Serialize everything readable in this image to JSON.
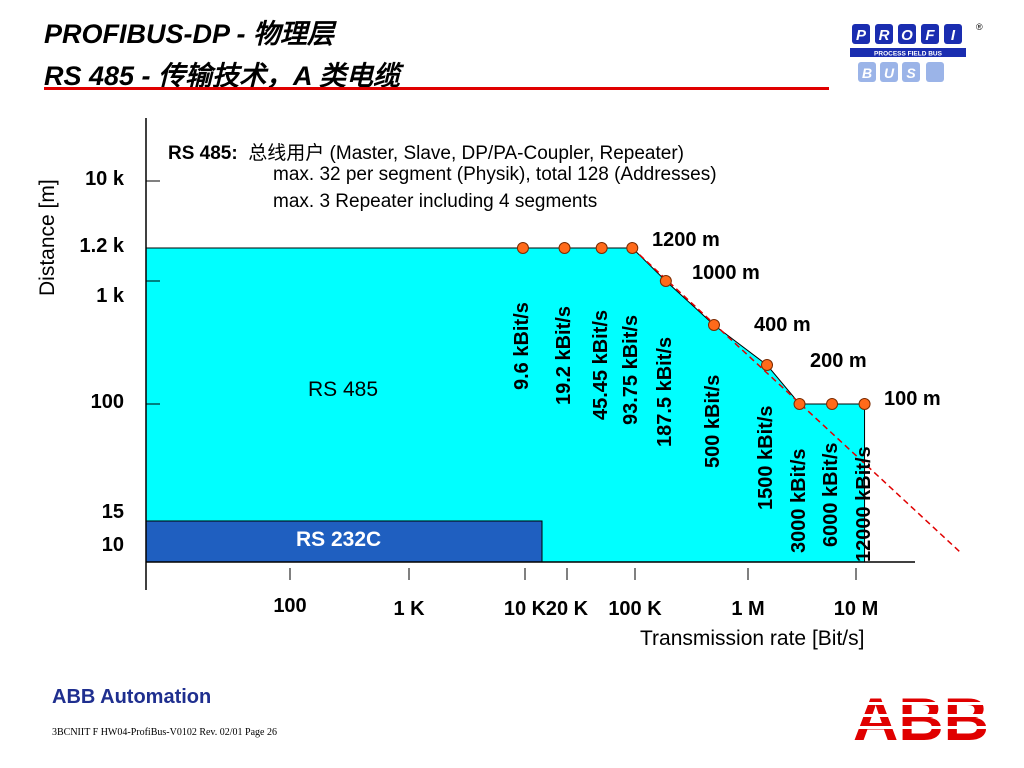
{
  "header": {
    "title_line1": "PROFIBUS-DP - 物理层",
    "title_line2": "RS 485 - 传输技术，A 类电缆"
  },
  "logo": {
    "profi_letters": [
      "P",
      "R",
      "O",
      "F",
      "I"
    ],
    "bus_letters": [
      "B",
      "U",
      "S"
    ],
    "tagline": "PROCESS FIELD BUS",
    "registered": "®",
    "accent": "#1a2db0"
  },
  "notes": {
    "line1_head": "RS 485:",
    "line1_body": "总线用户 (Master, Slave, DP/PA-Coupler, Repeater)",
    "line2": "max. 32 per segment (Physik), total 128 (Addresses)",
    "line3": "max. 3 Repeater including 4 segments"
  },
  "chart_data": {
    "type": "area",
    "xlabel": "Transmission rate [Bit/s]",
    "ylabel": "Distance [m]",
    "x_scale": "log",
    "y_scale": "nonlinear",
    "x_ticks": [
      "100",
      "1 K",
      "10 K",
      "20 K",
      "100 K",
      "1 M",
      "10 M"
    ],
    "y_ticks": [
      "10 k",
      "1.2 k",
      "1 k",
      "100",
      "15",
      "10"
    ],
    "regions": [
      {
        "name": "RS 485",
        "color": "#00ffff"
      },
      {
        "name": "RS 232C",
        "color": "#1f5fc0"
      }
    ],
    "series": [
      {
        "name": "RS 485",
        "points": [
          {
            "rate": "9.6 kBit/s",
            "rate_bps": 9600,
            "distance_m": 1200
          },
          {
            "rate": "19.2 kBit/s",
            "rate_bps": 19200,
            "distance_m": 1200
          },
          {
            "rate": "45.45 kBit/s",
            "rate_bps": 45450,
            "distance_m": 1200
          },
          {
            "rate": "93.75 kBit/s",
            "rate_bps": 93750,
            "distance_m": 1200
          },
          {
            "rate": "187.5 kBit/s",
            "rate_bps": 187500,
            "distance_m": 1000
          },
          {
            "rate": "500 kBit/s",
            "rate_bps": 500000,
            "distance_m": 400
          },
          {
            "rate": "1500 kBit/s",
            "rate_bps": 1500000,
            "distance_m": 200
          },
          {
            "rate": "3000 kBit/s",
            "rate_bps": 3000000,
            "distance_m": 100
          },
          {
            "rate": "6000 kBit/s",
            "rate_bps": 6000000,
            "distance_m": 100
          },
          {
            "rate": "12000 kBit/s",
            "rate_bps": 12000000,
            "distance_m": 100
          }
        ]
      }
    ],
    "distance_labels": [
      "1200 m",
      "1000 m",
      "400 m",
      "200 m",
      "100 m"
    ],
    "colors": {
      "rs485_fill": "#00ffff",
      "rs232_fill": "#1f5fc0",
      "marker": "#ff6a1a",
      "trend": "#e00000"
    }
  },
  "footer": {
    "brand": "ABB Automation",
    "reference": "3BCNIIT F HW04-ProfiBus-V0102  Rev. 02/01 Page 26",
    "logo_text": "ABB",
    "logo_color": "#e00000"
  }
}
